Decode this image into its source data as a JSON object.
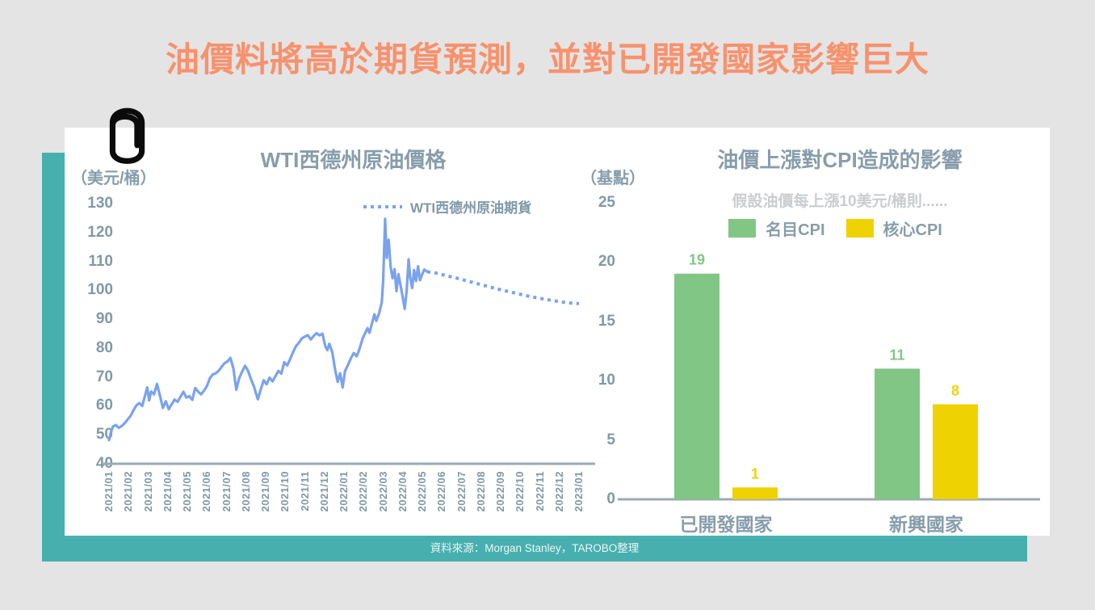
{
  "title": {
    "text": "油價料將高於期貨預測，並對已開發國家影響巨大"
  },
  "source": {
    "text": "資料來源：Morgan Stanley，TAROBO整理"
  },
  "colors": {
    "background": "#E4E4E5",
    "teal": "#47B0AE",
    "orange": "#F8926C",
    "line_blue": "#7AA2EF",
    "bar_green": "#82C685",
    "bar_yellow": "#EFD202",
    "axis_gray": "#9BAAB5",
    "text_gray": "#879DAB",
    "tick_gray": "#7F99A8",
    "subtitle_gray": "#C9CDD0",
    "source_text": "#E9F6F5",
    "panel": "#FFFFFF"
  },
  "chart_data": [
    {
      "type": "line",
      "title": "WTI西德州原油價格",
      "unit_label": "（美元/桶）",
      "ylabel": "美元/桶",
      "ylim": [
        40,
        130
      ],
      "y_ticks": [
        130,
        120,
        110,
        100,
        90,
        80,
        70,
        60,
        50,
        40
      ],
      "x_labels": [
        "2021/01",
        "2021/02",
        "2021/03",
        "2021/04",
        "2021/05",
        "2021/06",
        "2021/07",
        "2021/08",
        "2021/09",
        "2021/10",
        "2021/11",
        "2021/12",
        "2022/01",
        "2022/02",
        "2022/03",
        "2022/04",
        "2022/05",
        "2022/06",
        "2022/07",
        "2022/08",
        "2022/09",
        "2022/10",
        "2022/11",
        "2022/12",
        "2023/01"
      ],
      "legend": [
        {
          "label": "WTI西德州原油期貨",
          "style": "dotted",
          "color": "#7AA2EF"
        }
      ],
      "grid": false,
      "series": [
        {
          "name": "WTI西德州原油價格",
          "style": "solid",
          "color": "#7AA2EF",
          "points": [
            [
              0.0,
              48.2
            ],
            [
              0.1,
              50.9
            ],
            [
              0.2,
              52.9
            ],
            [
              0.35,
              53.4
            ],
            [
              0.5,
              52.4
            ],
            [
              0.65,
              53.1
            ],
            [
              0.8,
              54.0
            ],
            [
              0.95,
              55.3
            ],
            [
              1.1,
              56.6
            ],
            [
              1.25,
              58.5
            ],
            [
              1.4,
              60.2
            ],
            [
              1.55,
              61.0
            ],
            [
              1.7,
              60.0
            ],
            [
              1.85,
              63.9
            ],
            [
              1.95,
              66.4
            ],
            [
              2.05,
              61.9
            ],
            [
              2.15,
              65.0
            ],
            [
              2.3,
              64.0
            ],
            [
              2.45,
              67.6
            ],
            [
              2.6,
              63.5
            ],
            [
              2.75,
              59.3
            ],
            [
              2.9,
              61.6
            ],
            [
              3.05,
              58.9
            ],
            [
              3.2,
              60.6
            ],
            [
              3.35,
              62.2
            ],
            [
              3.5,
              61.4
            ],
            [
              3.65,
              63.2
            ],
            [
              3.8,
              64.9
            ],
            [
              3.95,
              62.9
            ],
            [
              4.1,
              63.4
            ],
            [
              4.25,
              62.1
            ],
            [
              4.4,
              66.2
            ],
            [
              4.55,
              65.0
            ],
            [
              4.7,
              64.0
            ],
            [
              4.85,
              65.3
            ],
            [
              5.0,
              66.9
            ],
            [
              5.15,
              69.6
            ],
            [
              5.3,
              70.9
            ],
            [
              5.45,
              71.3
            ],
            [
              5.6,
              72.2
            ],
            [
              5.75,
              73.5
            ],
            [
              5.9,
              74.8
            ],
            [
              6.05,
              75.4
            ],
            [
              6.2,
              76.6
            ],
            [
              6.35,
              73.0
            ],
            [
              6.5,
              65.6
            ],
            [
              6.65,
              69.7
            ],
            [
              6.8,
              71.9
            ],
            [
              6.95,
              73.9
            ],
            [
              7.1,
              72.1
            ],
            [
              7.25,
              69.3
            ],
            [
              7.4,
              66.7
            ],
            [
              7.6,
              62.3
            ],
            [
              7.75,
              65.7
            ],
            [
              7.9,
              68.9
            ],
            [
              8.05,
              67.5
            ],
            [
              8.2,
              69.8
            ],
            [
              8.35,
              68.5
            ],
            [
              8.5,
              70.3
            ],
            [
              8.65,
              72.1
            ],
            [
              8.8,
              71.2
            ],
            [
              8.95,
              75.1
            ],
            [
              9.1,
              74.0
            ],
            [
              9.25,
              76.2
            ],
            [
              9.4,
              78.7
            ],
            [
              9.55,
              80.7
            ],
            [
              9.7,
              81.9
            ],
            [
              9.85,
              83.4
            ],
            [
              10.0,
              84.0
            ],
            [
              10.15,
              84.5
            ],
            [
              10.3,
              83.0
            ],
            [
              10.45,
              84.2
            ],
            [
              10.6,
              85.2
            ],
            [
              10.75,
              84.4
            ],
            [
              10.9,
              85.0
            ],
            [
              11.05,
              80.5
            ],
            [
              11.15,
              79.3
            ],
            [
              11.25,
              81.5
            ],
            [
              11.4,
              78.7
            ],
            [
              11.55,
              72.4
            ],
            [
              11.68,
              68.3
            ],
            [
              11.8,
              71.3
            ],
            [
              11.93,
              66.4
            ],
            [
              12.05,
              72.0
            ],
            [
              12.2,
              74.1
            ],
            [
              12.35,
              76.5
            ],
            [
              12.5,
              78.3
            ],
            [
              12.65,
              77.2
            ],
            [
              12.8,
              79.9
            ],
            [
              12.95,
              83.3
            ],
            [
              13.1,
              85.5
            ],
            [
              13.2,
              86.9
            ],
            [
              13.3,
              85.3
            ],
            [
              13.45,
              89.1
            ],
            [
              13.55,
              91.7
            ],
            [
              13.65,
              89.4
            ],
            [
              13.8,
              92.3
            ],
            [
              13.93,
              95.9
            ],
            [
              14.0,
              103.3
            ],
            [
              14.1,
              124.7
            ],
            [
              14.18,
              111.2
            ],
            [
              14.28,
              117.5
            ],
            [
              14.38,
              108.1
            ],
            [
              14.48,
              104.2
            ],
            [
              14.58,
              107.3
            ],
            [
              14.68,
              99.7
            ],
            [
              14.78,
              105.6
            ],
            [
              14.88,
              102.1
            ],
            [
              14.98,
              98.2
            ],
            [
              15.1,
              93.6
            ],
            [
              15.2,
              99.9
            ],
            [
              15.3,
              110.7
            ],
            [
              15.38,
              104.4
            ],
            [
              15.48,
              100.8
            ],
            [
              15.58,
              107.0
            ],
            [
              15.68,
              103.2
            ],
            [
              15.78,
              108.3
            ],
            [
              15.88,
              103.5
            ],
            [
              15.98,
              105.3
            ],
            [
              16.1,
              107.2
            ],
            [
              16.25,
              106.4
            ]
          ]
        },
        {
          "name": "WTI西德州原油期貨",
          "style": "dotted",
          "color": "#7AA2EF",
          "points": [
            [
              16.25,
              106.4
            ],
            [
              16.7,
              106.0
            ],
            [
              17.2,
              105.1
            ],
            [
              17.7,
              104.3
            ],
            [
              18.2,
              103.4
            ],
            [
              18.7,
              102.5
            ],
            [
              19.2,
              101.6
            ],
            [
              19.7,
              100.7
            ],
            [
              20.2,
              99.9
            ],
            [
              20.7,
              99.1
            ],
            [
              21.2,
              98.3
            ],
            [
              21.7,
              97.6
            ],
            [
              22.2,
              97.0
            ],
            [
              22.7,
              96.4
            ],
            [
              23.2,
              95.9
            ],
            [
              23.6,
              95.6
            ],
            [
              24.0,
              95.4
            ]
          ]
        }
      ]
    },
    {
      "type": "bar",
      "title": "油價上漲對CPI造成的影響",
      "subtitle": "假設油價每上漲10美元/桶則......",
      "unit_label": "（基點）",
      "ylabel": "基點",
      "ylim": [
        0,
        25
      ],
      "y_ticks": [
        25,
        20,
        15,
        10,
        5,
        0
      ],
      "categories": [
        "已開發國家",
        "新興國家"
      ],
      "series": [
        {
          "name": "名目CPI",
          "color": "#82C685",
          "values": [
            19,
            11
          ]
        },
        {
          "name": "核心CPI",
          "color": "#EFD202",
          "values": [
            1,
            8
          ]
        }
      ],
      "legend_position": "top"
    }
  ]
}
